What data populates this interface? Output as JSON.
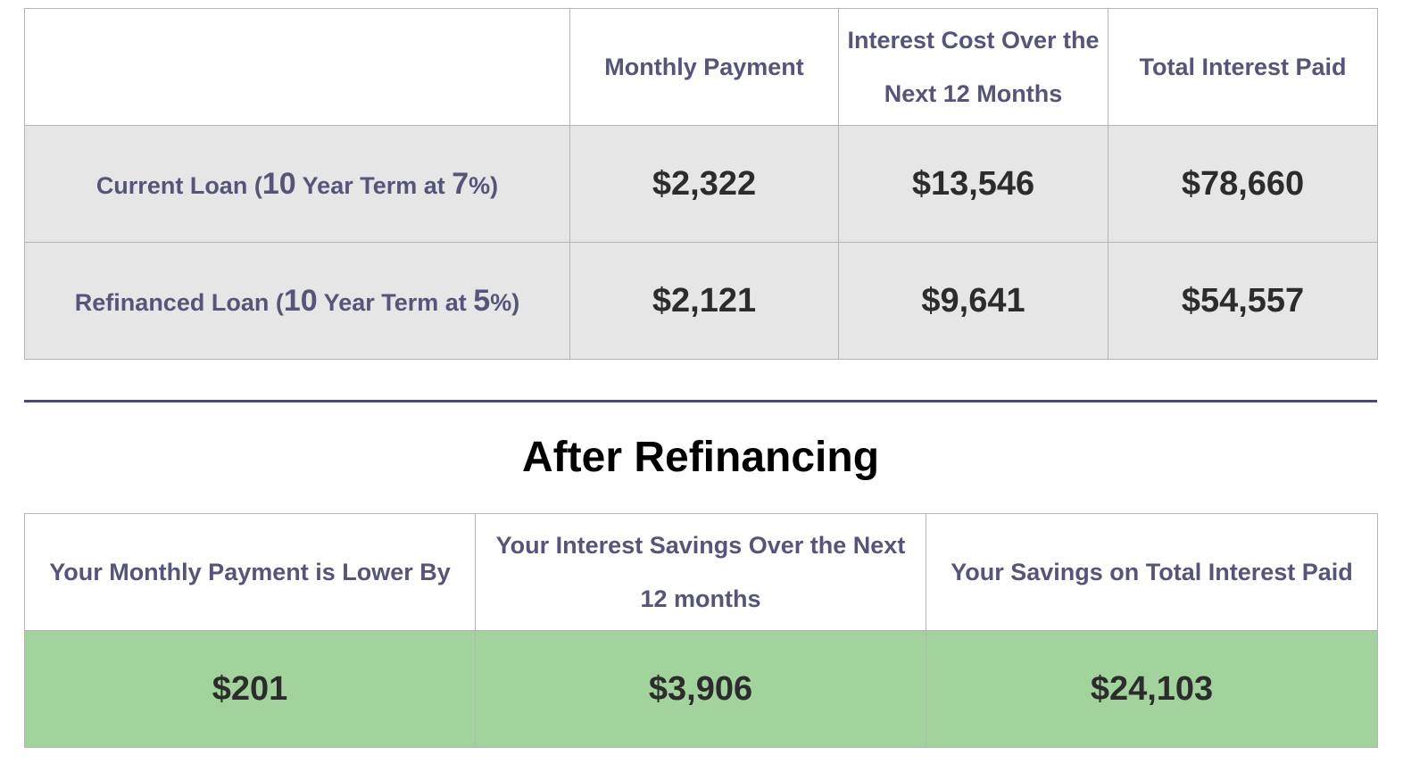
{
  "comparison_table": {
    "headers": [
      "",
      "Monthly Payment",
      "Interest Cost Over the Next 12 Months",
      "Total Interest Paid"
    ],
    "rows": [
      {
        "label_prefix": "Current Loan (",
        "term_years": "10",
        "label_middle": " Year Term at ",
        "rate": "7",
        "label_suffix": "%)",
        "monthly_payment": "$2,322",
        "interest_12_months": "$13,546",
        "total_interest": "$78,660"
      },
      {
        "label_prefix": "Refinanced Loan (",
        "term_years": "10",
        "label_middle": " Year Term at ",
        "rate": "5",
        "label_suffix": "%)",
        "monthly_payment": "$2,121",
        "interest_12_months": "$9,641",
        "total_interest": "$54,557"
      }
    ]
  },
  "after_refinancing": {
    "title": "After Refinancing",
    "headers": [
      "Your Monthly Payment is Lower By",
      "Your Interest Savings Over the Next 12 months",
      "Your Savings on Total Interest Paid"
    ],
    "values": [
      "$201",
      "$3,906",
      "$24,103"
    ]
  },
  "colors": {
    "header_text": "#55557a",
    "row_background": "#e6e6e6",
    "savings_background": "#a3d39c",
    "divider": "#4a4a6a"
  }
}
